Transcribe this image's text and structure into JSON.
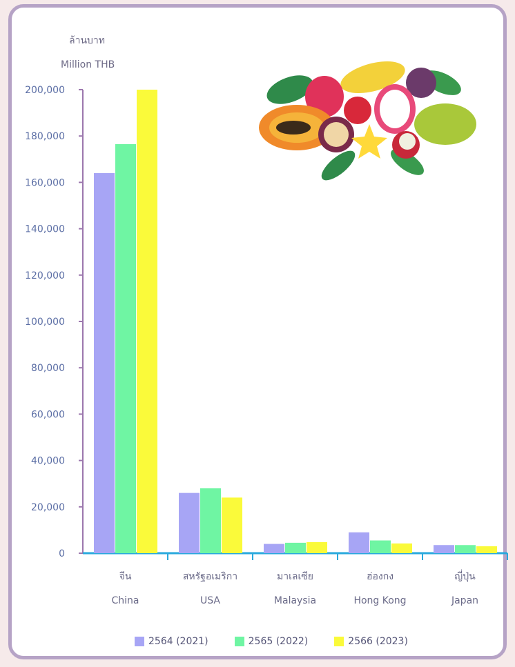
{
  "chart_data": {
    "type": "bar",
    "ylabel_th": "ล้านบาท",
    "ylabel_en": "Million THB",
    "ylim": [
      0,
      200000
    ],
    "yticks": [
      "0",
      "20,000",
      "40,000",
      "60,000",
      "80,000",
      "100,000",
      "120,000",
      "140,000",
      "160,000",
      "180,000",
      "200,000"
    ],
    "categories": [
      {
        "th": "จีน",
        "en": "China"
      },
      {
        "th": "สหรัฐอเมริกา",
        "en": "USA"
      },
      {
        "th": "มาเลเซีย",
        "en": "Malaysia"
      },
      {
        "th": "ฮ่องกง",
        "en": "Hong Kong"
      },
      {
        "th": "ญี่ปุ่น",
        "en": "Japan"
      }
    ],
    "series": [
      {
        "name": "2564  (2021)",
        "color": "#a7a5f5",
        "values": [
          164000,
          26000,
          4000,
          9000,
          3500
        ]
      },
      {
        "name": "2565  (2022)",
        "color": "#6ff5a3",
        "values": [
          176500,
          28000,
          4500,
          5500,
          3500
        ]
      },
      {
        "name": "2566  (2023)",
        "color": "#fafa3a",
        "values": [
          200000,
          24000,
          4800,
          4200,
          3000
        ]
      }
    ],
    "axis_color": "#9b76ad",
    "baseline_color": "#29a9dd"
  }
}
